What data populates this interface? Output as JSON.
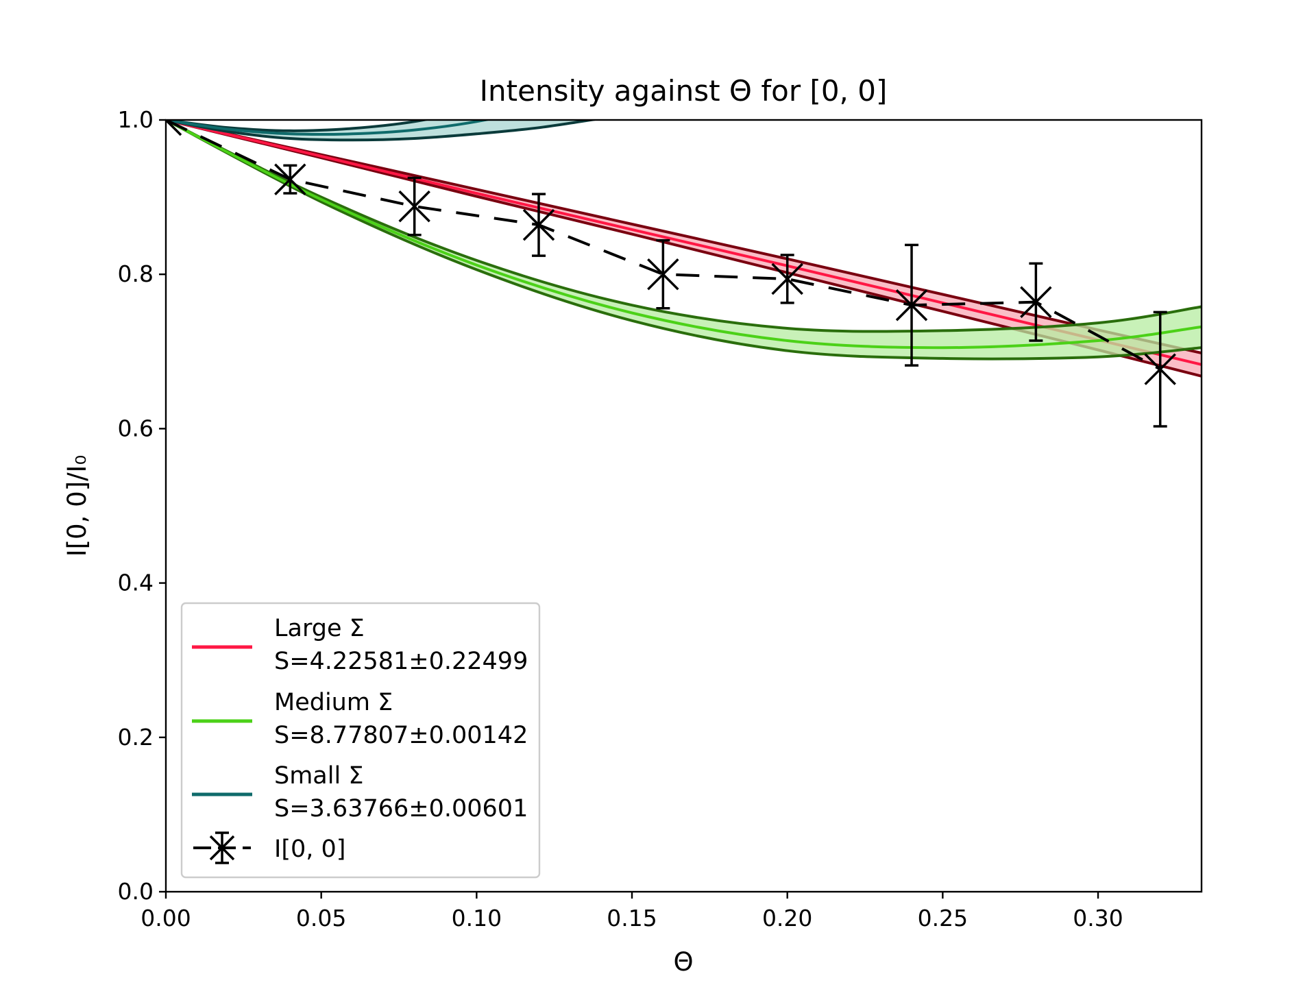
{
  "chart_data": {
    "type": "line",
    "title": "Intensity against Θ for [0, 0]",
    "xlabel": "Θ",
    "ylabel": "I[0, 0]/I₀",
    "xlim": [
      0,
      0.3333
    ],
    "ylim": [
      0,
      1.0
    ],
    "xticks": [
      "0.00",
      "0.05",
      "0.10",
      "0.15",
      "0.20",
      "0.25",
      "0.30"
    ],
    "yticks": [
      "0.0",
      "0.2",
      "0.4",
      "0.6",
      "0.8",
      "1.0"
    ],
    "grid": false,
    "legend_position": "lower-left",
    "series": [
      {
        "name": "Large Σ",
        "label_line2": "S=4.22581±0.22499",
        "kind": "fit-band",
        "color": "#ff1744",
        "edge_color": "#7a0010",
        "fill_color": "#f8a8b4",
        "x": [
          0.0,
          0.05,
          0.1,
          0.15,
          0.2,
          0.25,
          0.3,
          0.3333
        ],
        "center": [
          1.0,
          0.953,
          0.905,
          0.858,
          0.811,
          0.763,
          0.715,
          0.683
        ],
        "upper": [
          1.0,
          0.955,
          0.91,
          0.865,
          0.82,
          0.774,
          0.728,
          0.698
        ],
        "lower": [
          1.0,
          0.951,
          0.901,
          0.852,
          0.802,
          0.752,
          0.702,
          0.668
        ]
      },
      {
        "name": "Medium Σ",
        "label_line2": "S=8.77807±0.00142",
        "kind": "fit-band",
        "color": "#4cd118",
        "edge_color": "#2a6e0c",
        "fill_color": "#b6eca0",
        "x": [
          0.0,
          0.05,
          0.1,
          0.15,
          0.2,
          0.25,
          0.3,
          0.3333
        ],
        "center": [
          1.0,
          0.897,
          0.812,
          0.75,
          0.714,
          0.705,
          0.714,
          0.732
        ],
        "upper": [
          1.0,
          0.9,
          0.818,
          0.76,
          0.73,
          0.727,
          0.737,
          0.758
        ],
        "lower": [
          1.0,
          0.894,
          0.806,
          0.74,
          0.701,
          0.691,
          0.693,
          0.705
        ]
      },
      {
        "name": "Small Σ",
        "label_line2": "S=3.63766±0.00601",
        "kind": "fit-band",
        "color": "#0f6b6b",
        "edge_color": "#0b3b3b",
        "fill_color": "#a8d6d2",
        "x": [
          0.0,
          0.02,
          0.04,
          0.06,
          0.08,
          0.1,
          0.12,
          0.14
        ],
        "center": [
          1.0,
          0.988,
          0.982,
          0.982,
          0.987,
          0.998,
          1.016,
          1.04
        ],
        "upper": [
          1.0,
          0.99,
          0.986,
          0.989,
          0.998,
          1.015,
          1.036,
          1.062
        ],
        "lower": [
          1.0,
          0.985,
          0.976,
          0.974,
          0.976,
          0.982,
          0.99,
          1.002
        ]
      },
      {
        "name": "I[0, 0]",
        "kind": "errorbar",
        "color": "#000000",
        "x": [
          0.0,
          0.04,
          0.08,
          0.12,
          0.16,
          0.2,
          0.24,
          0.28,
          0.32
        ],
        "y": [
          1.0,
          0.923,
          0.888,
          0.864,
          0.8,
          0.794,
          0.76,
          0.764,
          0.677
        ],
        "yerr": [
          0.0,
          0.018,
          0.037,
          0.04,
          0.044,
          0.031,
          0.078,
          0.05,
          0.074
        ]
      }
    ]
  }
}
